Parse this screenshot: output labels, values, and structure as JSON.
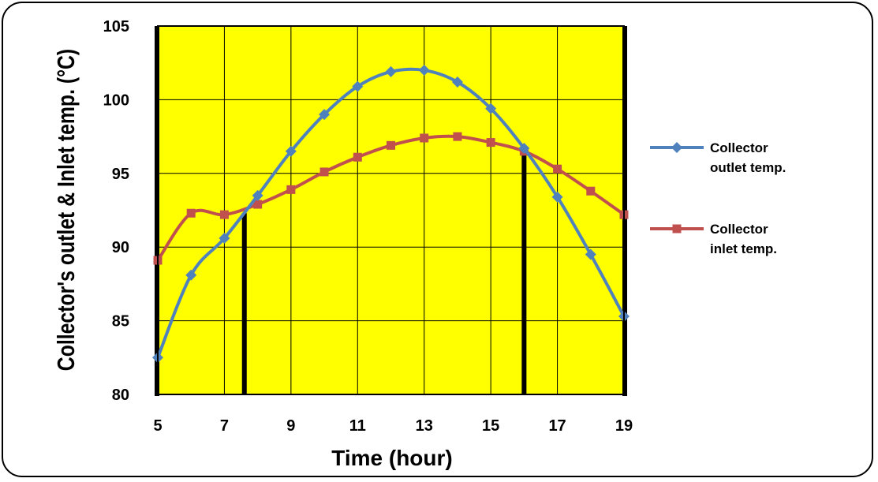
{
  "chart_data": {
    "type": "line",
    "xlabel": "Time (hour)",
    "ylabel": "Collector's outlet & Inlet temp. (°C)",
    "xlim": [
      5,
      19
    ],
    "ylim": [
      80,
      105
    ],
    "xticks": [
      "5",
      "7",
      "9",
      "11",
      "13",
      "15",
      "17",
      "19"
    ],
    "yticks": [
      "80",
      "85",
      "90",
      "95",
      "100",
      "105"
    ],
    "grid": true,
    "legend_position": "right",
    "plot_background": "#ffff00",
    "x": [
      5,
      6,
      7,
      8,
      9,
      10,
      11,
      12,
      13,
      14,
      15,
      16,
      17,
      18,
      19
    ],
    "series": [
      {
        "name_line1": "Collector",
        "name_line2": "outlet temp.",
        "color": "#4f81bd",
        "marker": "diamond",
        "values": [
          82.5,
          88.1,
          90.6,
          93.5,
          96.5,
          99.0,
          100.9,
          101.9,
          102.0,
          101.2,
          99.4,
          96.7,
          93.4,
          89.5,
          85.3
        ]
      },
      {
        "name_line1": "Collector",
        "name_line2": "inlet temp.",
        "color": "#c0504d",
        "marker": "square",
        "values": [
          89.1,
          92.3,
          92.2,
          92.9,
          93.9,
          95.1,
          96.1,
          96.9,
          97.4,
          97.5,
          97.1,
          96.5,
          95.3,
          93.8,
          92.2
        ]
      }
    ],
    "vertical_markers": [
      {
        "x": 7.6,
        "y_top": 92.3
      },
      {
        "x": 16.0,
        "y_top": 96.7
      }
    ]
  }
}
